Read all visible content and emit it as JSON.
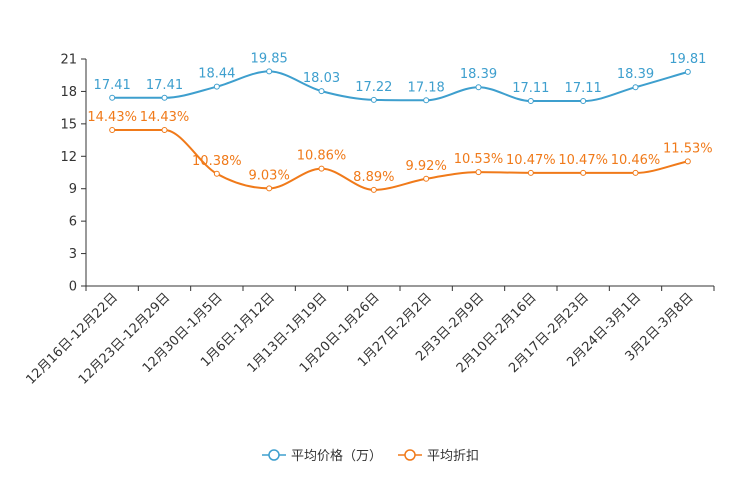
{
  "chart_data": {
    "type": "line",
    "categories": [
      "12月16日-12月22日",
      "12月23日-12月29日",
      "12月30日-1月5日",
      "1月6日-1月12日",
      "1月13日-1月19日",
      "1月20日-1月26日",
      "1月27日-2月2日",
      "2月3日-2月9日",
      "2月10日-2月16日",
      "2月17日-2月23日",
      "2月24日-3月1日",
      "3月2日-3月8日"
    ],
    "ylim": [
      0,
      21
    ],
    "yticks": [
      0,
      3,
      6,
      9,
      12,
      15,
      18,
      21
    ],
    "series": [
      {
        "name": "平均价格（万）",
        "color": "#3e9fce",
        "values": [
          17.41,
          17.41,
          18.44,
          19.85,
          18.03,
          17.22,
          17.18,
          18.39,
          17.11,
          17.11,
          18.39,
          19.81
        ],
        "labels": [
          "17.41",
          "17.41",
          "18.44",
          "19.85",
          "18.03",
          "17.22",
          "17.18",
          "18.39",
          "17.11",
          "17.11",
          "18.39",
          "19.81"
        ]
      },
      {
        "name": "平均折扣",
        "color": "#f07a1a",
        "values": [
          14.43,
          14.43,
          10.38,
          9.03,
          10.86,
          8.89,
          9.92,
          10.53,
          10.47,
          10.47,
          10.46,
          11.53
        ],
        "labels": [
          "14.43%",
          "14.43%",
          "10.38%",
          "9.03%",
          "10.86%",
          "8.89%",
          "9.92%",
          "10.53%",
          "10.47%",
          "10.47%",
          "10.46%",
          "11.53%"
        ]
      }
    ]
  }
}
